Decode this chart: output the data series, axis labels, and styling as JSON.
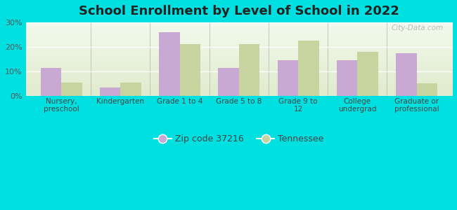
{
  "title": "School Enrollment by Level of School in 2022",
  "categories": [
    "Nursery,\npreschool",
    "Kindergarten",
    "Grade 1 to 4",
    "Grade 5 to 8",
    "Grade 9 to\n12",
    "College\nundergrad",
    "Graduate or\nprofessional"
  ],
  "zip_values": [
    11.5,
    3.5,
    26.0,
    11.5,
    14.5,
    14.5,
    17.5
  ],
  "tn_values": [
    5.5,
    5.5,
    21.0,
    21.0,
    22.5,
    18.0,
    5.0
  ],
  "zip_color": "#c9a8d4",
  "tn_color": "#c8d4a0",
  "background_outer": "#00e0e0",
  "ylim": [
    0,
    30
  ],
  "yticks": [
    0,
    10,
    20,
    30
  ],
  "legend_zip_label": "Zip code 37216",
  "legend_tn_label": "Tennessee",
  "title_fontsize": 13,
  "bar_width": 0.35,
  "watermark": "City-Data.com"
}
